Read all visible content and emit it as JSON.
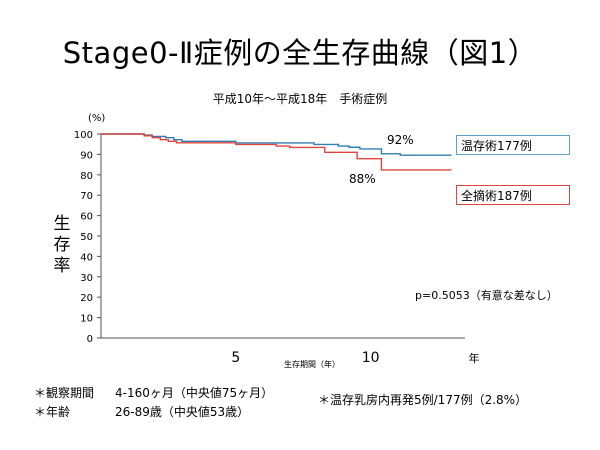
{
  "title": "Stage0-Ⅱ症例の全生存曲線（図1）",
  "subtitle": "平成10年～平成18年　手術症例",
  "y_axis_label": "生存率",
  "footnotes": {
    "obs_label": "＊観察期間",
    "obs_value": "4-160ヶ月（中央値75ヶ月）",
    "age_label": "＊年齢",
    "age_value": "26-89歳（中央値53歳）",
    "recurrence": "＊温存乳房内再発5例/177例（2.8%）"
  },
  "chart_data": {
    "type": "line",
    "title": "Stage0-Ⅱ症例の全生存曲線（図1）",
    "subtitle": "平成10年～平成18年　手術症例",
    "y_unit_label": "(%)",
    "ylabel": "生存率",
    "xlabel": "生存期間（年）",
    "x_unit_label": "年",
    "ylim": [
      0,
      100
    ],
    "xlim": [
      0,
      13.5
    ],
    "yticks": [
      0,
      10,
      20,
      30,
      40,
      50,
      60,
      70,
      80,
      90,
      100
    ],
    "xticks": [
      5,
      10
    ],
    "grid": false,
    "step": true,
    "series": [
      {
        "name": "温存術177例",
        "color": "#2f7fb5",
        "end_label": "92%",
        "x": [
          0,
          1.6,
          1.9,
          2.4,
          2.7,
          3.0,
          4.8,
          5.0,
          6.8,
          7.9,
          8.5,
          8.8,
          9.2,
          9.6,
          10.4,
          11.1,
          13.0
        ],
        "y": [
          100,
          99.5,
          98.8,
          98.2,
          97.2,
          96.4,
          96.4,
          95.6,
          95.6,
          94.9,
          94.9,
          94.1,
          93.5,
          92.7,
          90.3,
          89.6,
          89.6
        ]
      },
      {
        "name": "全摘術187例",
        "color": "#e0443e",
        "end_label": "88%",
        "x": [
          0,
          1.6,
          1.9,
          2.2,
          2.5,
          2.8,
          3.4,
          5.0,
          6.5,
          7.0,
          7.8,
          8.3,
          8.7,
          9.5,
          10.4,
          13.0
        ],
        "y": [
          100,
          99.1,
          98.2,
          97.2,
          96.4,
          95.7,
          95.7,
          94.9,
          94.1,
          93.4,
          93.4,
          91.0,
          91.0,
          87.9,
          82.4,
          82.4
        ]
      }
    ],
    "annotation": "p=0.5053（有意な差なし）"
  }
}
